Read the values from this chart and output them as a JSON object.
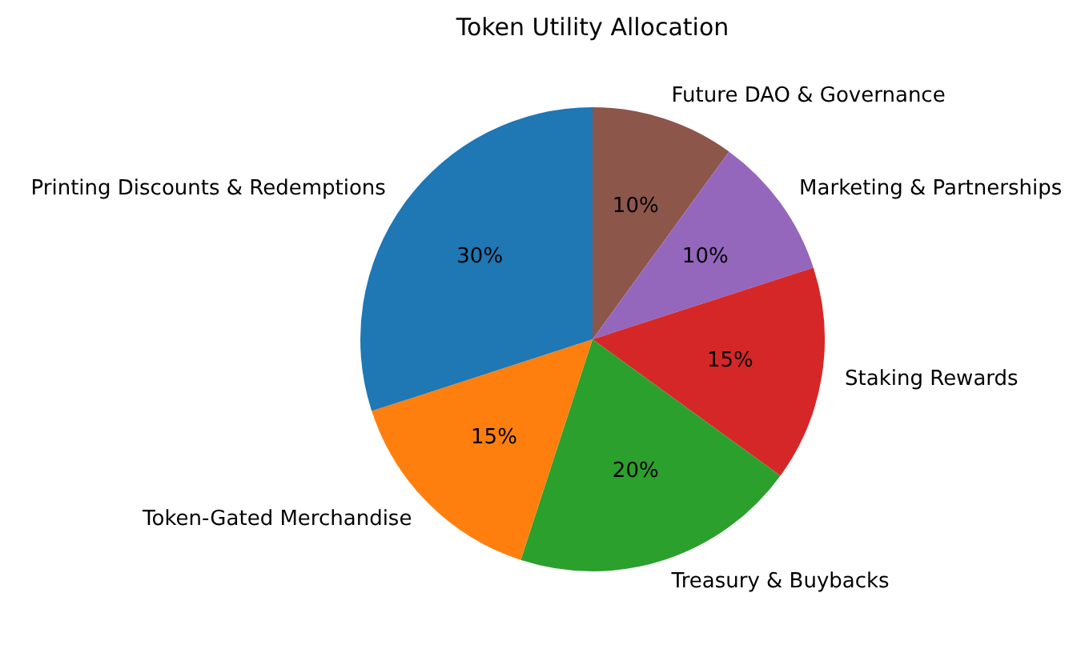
{
  "chart_data": {
    "type": "pie",
    "title": "Token Utility Allocation",
    "categories": [
      "Printing Discounts & Redemptions",
      "Token-Gated Merchandise",
      "Treasury & Buybacks",
      "Staking Rewards",
      "Marketing & Partnerships",
      "Future DAO & Governance"
    ],
    "values": [
      30,
      15,
      20,
      15,
      10,
      10
    ],
    "colors": [
      "#1f77b4",
      "#ff7f0e",
      "#2ca02c",
      "#d62728",
      "#9467bd",
      "#8c564b"
    ],
    "value_labels": [
      "30%",
      "15%",
      "20%",
      "15%",
      "10%",
      "10%"
    ],
    "legend": false
  }
}
